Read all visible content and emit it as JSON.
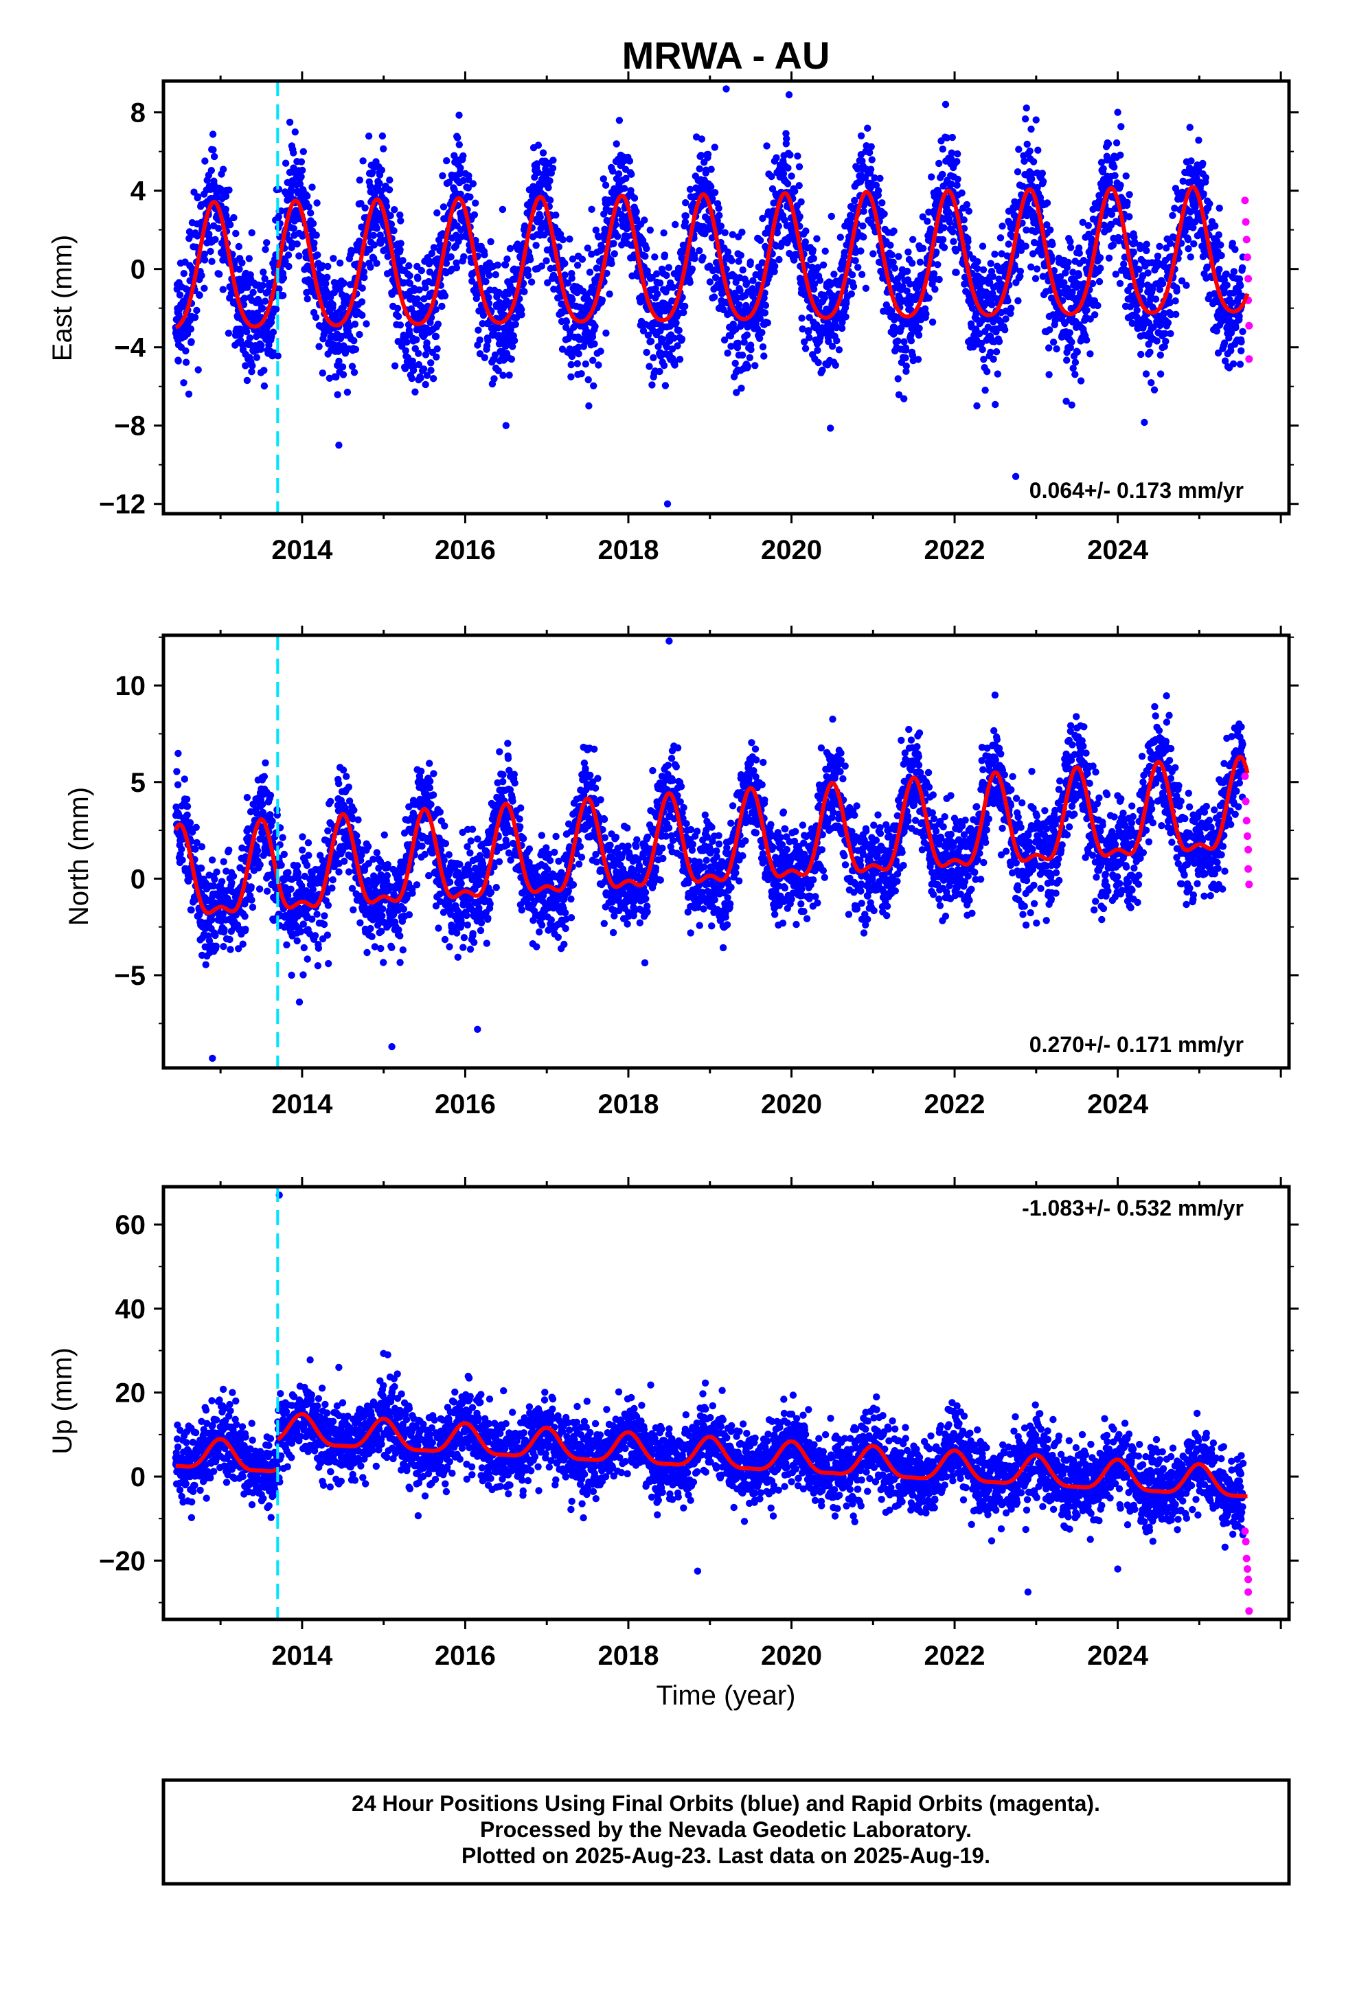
{
  "title": "MRWA - AU",
  "xlabel": "Time (year)",
  "footer": {
    "line1": "24 Hour Positions Using Final Orbits (blue) and Rapid Orbits (magenta).",
    "line2": "Processed by the Nevada Geodetic Laboratory.",
    "line3": "Plotted on 2025-Aug-23. Last data on 2025-Aug-19."
  },
  "colors": {
    "final": "#0000ff",
    "rapid": "#ff00ff",
    "model": "#ff0000",
    "event": "#00e5ff"
  },
  "chart_data": [
    {
      "type": "scatter",
      "component": "east",
      "ylabel": "East (mm)",
      "rate_text": "0.064+/- 0.173 mm/yr",
      "xlim": [
        2012.3,
        2026.1
      ],
      "ylim": [
        -12.5,
        9.6
      ],
      "yticks": [
        8,
        4,
        0,
        -4,
        -8,
        -12
      ],
      "ytick_labels": [
        "8",
        "4",
        "0",
        "−4",
        "−8",
        "−12"
      ],
      "xticks": [
        2014,
        2016,
        2018,
        2020,
        2022,
        2024
      ],
      "xtick_labels": [
        "2014",
        "2016",
        "2018",
        "2020",
        "2022",
        "2024"
      ],
      "event_x": 2013.7,
      "model": {
        "offset": -0.3,
        "rate": 0.064,
        "amp": 3.2,
        "peak_phase": 0.92,
        "semi_amp": 0.5
      },
      "noise": 1.6,
      "outliers": [
        [
          2019.2,
          9.2
        ],
        [
          2019.97,
          8.9
        ],
        [
          2013.85,
          7.5
        ],
        [
          2024.0,
          8.0
        ],
        [
          2022.75,
          -10.6
        ],
        [
          2018.48,
          -12.0
        ],
        [
          2014.45,
          -9.0
        ],
        [
          2016.5,
          -8.0
        ]
      ],
      "rapid_points": [
        [
          2025.56,
          3.5
        ],
        [
          2025.57,
          2.4
        ],
        [
          2025.58,
          1.5
        ],
        [
          2025.59,
          0.6
        ],
        [
          2025.6,
          -0.5
        ],
        [
          2025.6,
          -1.6
        ],
        [
          2025.61,
          -2.9
        ],
        [
          2025.61,
          -4.6
        ]
      ]
    },
    {
      "type": "scatter",
      "component": "north",
      "ylabel": "North (mm)",
      "rate_text": "0.270+/- 0.171 mm/yr",
      "xlim": [
        2012.3,
        2026.1
      ],
      "ylim": [
        -9.8,
        12.6
      ],
      "yticks": [
        10,
        5,
        0,
        -5
      ],
      "ytick_labels": [
        "10",
        "5",
        "0",
        "−5"
      ],
      "xticks": [
        2014,
        2016,
        2018,
        2020,
        2022,
        2024
      ],
      "xtick_labels": [
        "2014",
        "2016",
        "2018",
        "2020",
        "2022",
        "2024"
      ],
      "event_x": 2013.7,
      "model": {
        "offset": -0.3,
        "rate": 0.27,
        "amp": 2.2,
        "peak_phase": 0.5,
        "semi_amp": 0.9
      },
      "noise": 1.3,
      "outliers": [
        [
          2018.5,
          12.3
        ],
        [
          2017.45,
          6.8
        ],
        [
          2012.9,
          -9.3
        ],
        [
          2015.1,
          -8.7
        ],
        [
          2016.15,
          -7.8
        ]
      ],
      "rapid_points": [
        [
          2025.56,
          5.3
        ],
        [
          2025.57,
          4.0
        ],
        [
          2025.58,
          3.0
        ],
        [
          2025.59,
          2.2
        ],
        [
          2025.6,
          1.5
        ],
        [
          2025.6,
          0.5
        ],
        [
          2025.61,
          -0.3
        ]
      ]
    },
    {
      "type": "scatter",
      "component": "up",
      "ylabel": "Up (mm)",
      "rate_text": "-1.083+/- 0.532 mm/yr",
      "xlim": [
        2012.3,
        2026.1
      ],
      "ylim": [
        -34,
        69
      ],
      "yticks": [
        60,
        40,
        20,
        0,
        -20
      ],
      "ytick_labels": [
        "60",
        "40",
        "20",
        "0",
        "−20"
      ],
      "xticks": [
        2014,
        2016,
        2018,
        2020,
        2022,
        2024
      ],
      "xtick_labels": [
        "2014",
        "2016",
        "2018",
        "2020",
        "2022",
        "2024"
      ],
      "event_x": 2013.7,
      "model": {
        "offset": 5.0,
        "rate": -1.083,
        "amp": 3.5,
        "peak_phase": 0.0,
        "semi_amp": 1.0
      },
      "noise": 4.5,
      "outliers": [
        [
          2013.72,
          67.0
        ],
        [
          2015.05,
          29.0
        ],
        [
          2014.45,
          26.0
        ],
        [
          2019.15,
          20.5
        ],
        [
          2018.85,
          -22.5
        ],
        [
          2022.9,
          -27.5
        ],
        [
          2024.0,
          -22.0
        ]
      ],
      "rapid_points": [
        [
          2025.56,
          -13.0
        ],
        [
          2025.57,
          -15.5
        ],
        [
          2025.58,
          -19.5
        ],
        [
          2025.59,
          -22.0
        ],
        [
          2025.6,
          -24.5
        ],
        [
          2025.6,
          -27.5
        ],
        [
          2025.61,
          -32.0
        ]
      ]
    }
  ]
}
